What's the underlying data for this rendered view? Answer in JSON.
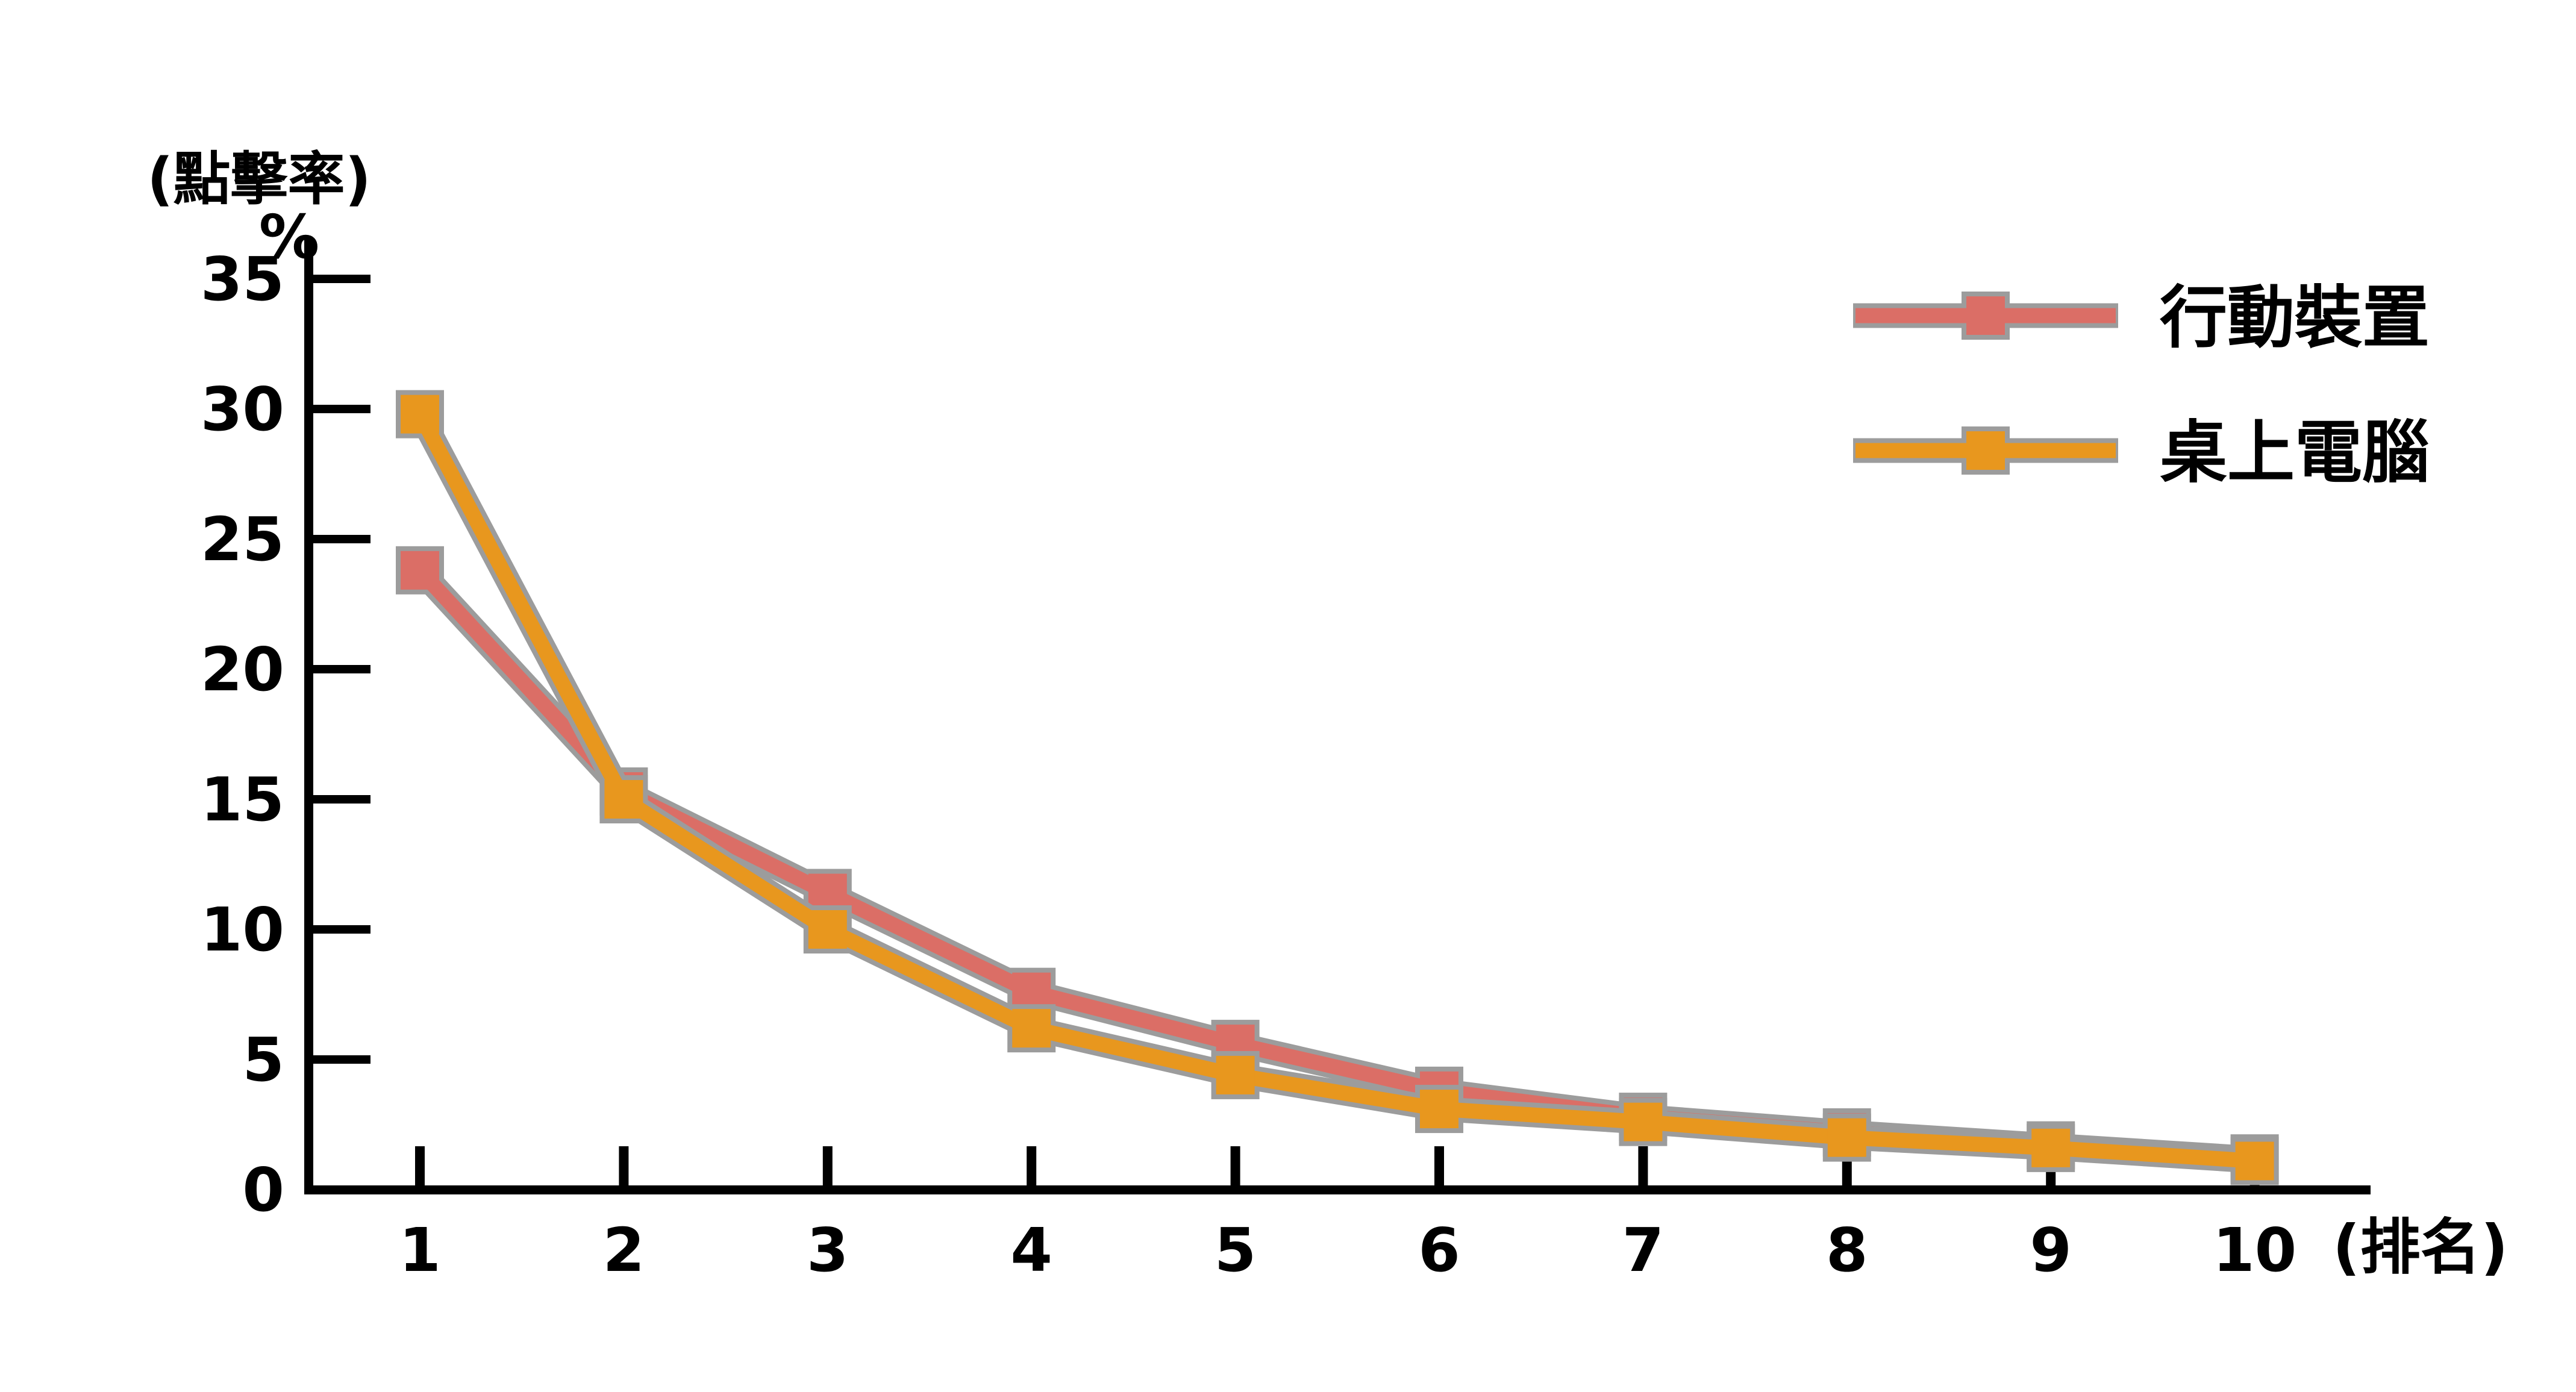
{
  "chart_data": {
    "type": "line",
    "title": "",
    "y_axis_title": "(點擊率)",
    "y_axis_unit": "%",
    "x_axis_title": "(排名)",
    "x": [
      1,
      2,
      3,
      4,
      5,
      6,
      7,
      8,
      9,
      10
    ],
    "x_tick_labels": [
      "1",
      "2",
      "3",
      "4",
      "5",
      "6",
      "7",
      "8",
      "9",
      "10"
    ],
    "y_ticks": [
      0,
      5,
      10,
      15,
      20,
      25,
      30,
      35
    ],
    "ylim": [
      0,
      35
    ],
    "grid": false,
    "legend_position": "top-right",
    "marker": "square",
    "marker_outline_color": "#9C9C9C",
    "axis_color": "#000000",
    "background_color": "#FFFFFF",
    "series": [
      {
        "key": "mobile",
        "name": "行動裝置",
        "color": "#DB6E66",
        "values": [
          23.8,
          15.3,
          11.4,
          7.6,
          5.6,
          3.8,
          2.8,
          2.2,
          1.7,
          1.2
        ]
      },
      {
        "key": "desktop",
        "name": "桌上電腦",
        "color": "#E8971E",
        "values": [
          29.8,
          15.0,
          10.0,
          6.2,
          4.4,
          3.1,
          2.6,
          2.0,
          1.6,
          1.1
        ]
      }
    ]
  }
}
